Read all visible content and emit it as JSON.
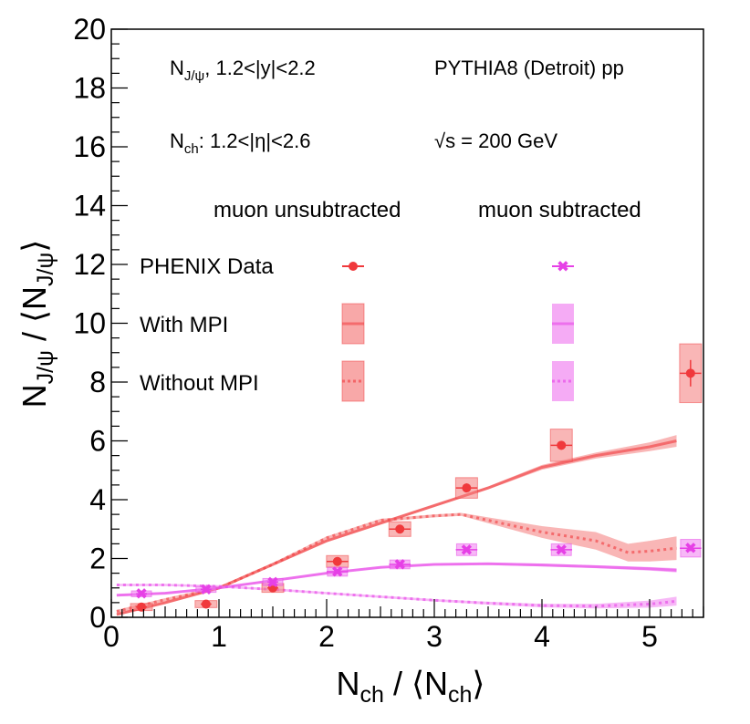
{
  "chart_data": {
    "type": "scatter",
    "xlim": [
      0,
      5.5
    ],
    "ylim": [
      0,
      20
    ],
    "x_ticks": [
      0,
      1,
      2,
      3,
      4,
      5
    ],
    "y_ticks": [
      0,
      2,
      4,
      6,
      8,
      10,
      12,
      14,
      16,
      18,
      20
    ],
    "xlabel": {
      "main": "N",
      "sub": "ch",
      "sep": " / ⟨N",
      "sub2": "ch",
      "close": "⟩"
    },
    "ylabel": {
      "main": "N",
      "sub": "J/ψ",
      "sep": " / ⟨N",
      "sub2": "J/ψ",
      "close": "⟩"
    },
    "annotations": {
      "rapidity": {
        "n": "N",
        "sub": "J/ψ",
        "rest": ", 1.2<|y|<2.2"
      },
      "eta": {
        "n": "N",
        "sub": "ch",
        "rest": ": 1.2<|η|<2.6"
      },
      "generator": "PYTHIA8 (Detroit) pp",
      "energy": "√s = 200 GeV",
      "col_unsub": "muon unsubtracted",
      "col_sub": "muon subtracted"
    },
    "legend": {
      "placement": "upper-center",
      "entries": [
        "PHENIX Data",
        "With MPI",
        "Without MPI"
      ]
    },
    "colors": {
      "unsub": "#f0393c",
      "unsub_band": "#f47a7a",
      "sub": "#e640e6",
      "sub_band": "#f07ef0"
    },
    "series": [
      {
        "name": "PHENIX Data",
        "group": "muon unsubtracted",
        "kind": "points",
        "x": [
          0.28,
          0.88,
          1.5,
          2.1,
          2.68,
          3.3,
          4.18,
          5.38
        ],
        "y": [
          0.35,
          0.45,
          1.0,
          1.9,
          3.0,
          4.4,
          5.85,
          8.3
        ],
        "xerr": [
          0.05,
          0.05,
          0.05,
          0.1,
          0.1,
          0.1,
          0.1,
          0.1
        ],
        "yerr": [
          0.1,
          0.1,
          0.1,
          0.1,
          0.1,
          0.15,
          0.15,
          0.45
        ],
        "sys": [
          0.12,
          0.12,
          0.15,
          0.2,
          0.25,
          0.35,
          0.55,
          1.0
        ]
      },
      {
        "name": "PHENIX Data",
        "group": "muon subtracted",
        "kind": "points",
        "x": [
          0.28,
          0.88,
          1.5,
          2.1,
          2.68,
          3.3,
          4.18,
          5.38
        ],
        "y": [
          0.8,
          0.95,
          1.2,
          1.55,
          1.8,
          2.3,
          2.3,
          2.35
        ],
        "xerr": [
          0.05,
          0.05,
          0.05,
          0.1,
          0.1,
          0.1,
          0.1,
          0.1
        ],
        "yerr": [
          0.05,
          0.05,
          0.05,
          0.05,
          0.05,
          0.08,
          0.08,
          0.1
        ],
        "sys": [
          0.1,
          0.1,
          0.12,
          0.15,
          0.15,
          0.2,
          0.2,
          0.3
        ]
      },
      {
        "name": "With MPI",
        "group": "muon unsubtracted",
        "kind": "band",
        "style": "solid",
        "x": [
          0.05,
          0.5,
          1.0,
          1.5,
          2.0,
          2.5,
          3.0,
          3.5,
          4.0,
          4.5,
          5.0,
          5.25
        ],
        "y": [
          0.1,
          0.5,
          1.0,
          1.8,
          2.6,
          3.2,
          3.8,
          4.4,
          5.1,
          5.5,
          5.8,
          6.0
        ],
        "err": [
          0.05,
          0.05,
          0.05,
          0.05,
          0.05,
          0.05,
          0.05,
          0.05,
          0.08,
          0.1,
          0.15,
          0.2
        ]
      },
      {
        "name": "Without MPI",
        "group": "muon unsubtracted",
        "kind": "band",
        "style": "dotted",
        "x": [
          0.05,
          0.5,
          1.0,
          1.5,
          2.0,
          2.5,
          3.0,
          3.25,
          3.5,
          4.0,
          4.5,
          4.8,
          5.0,
          5.25
        ],
        "y": [
          0.2,
          0.6,
          1.0,
          1.8,
          2.7,
          3.3,
          3.45,
          3.5,
          3.3,
          2.9,
          2.6,
          2.2,
          2.25,
          2.35
        ],
        "err": [
          0.05,
          0.05,
          0.05,
          0.05,
          0.05,
          0.05,
          0.05,
          0.05,
          0.1,
          0.2,
          0.3,
          0.3,
          0.35,
          0.4
        ]
      },
      {
        "name": "With MPI",
        "group": "muon subtracted",
        "kind": "band",
        "style": "solid",
        "x": [
          0.05,
          0.5,
          1.0,
          1.5,
          2.0,
          2.5,
          3.0,
          3.5,
          4.0,
          4.5,
          5.0,
          5.25
        ],
        "y": [
          0.75,
          0.82,
          1.0,
          1.25,
          1.5,
          1.7,
          1.8,
          1.82,
          1.78,
          1.72,
          1.65,
          1.6
        ],
        "err": [
          0.04,
          0.04,
          0.04,
          0.04,
          0.04,
          0.04,
          0.04,
          0.04,
          0.05,
          0.05,
          0.06,
          0.07
        ]
      },
      {
        "name": "Without MPI",
        "group": "muon subtracted",
        "kind": "band",
        "style": "dotted",
        "x": [
          0.05,
          0.5,
          1.0,
          1.5,
          2.0,
          2.5,
          3.0,
          3.5,
          4.0,
          4.5,
          5.0,
          5.25
        ],
        "y": [
          1.1,
          1.1,
          1.05,
          0.95,
          0.82,
          0.7,
          0.58,
          0.48,
          0.4,
          0.38,
          0.45,
          0.55
        ],
        "err": [
          0.04,
          0.04,
          0.04,
          0.04,
          0.04,
          0.04,
          0.04,
          0.05,
          0.06,
          0.08,
          0.12,
          0.15
        ]
      }
    ]
  }
}
